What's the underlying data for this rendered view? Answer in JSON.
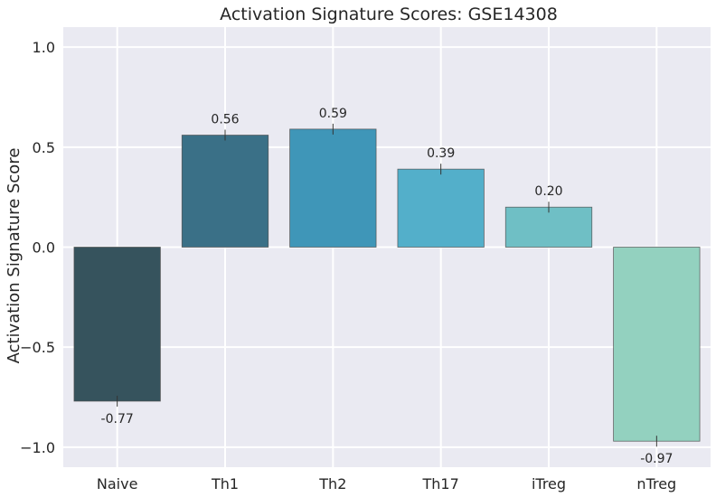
{
  "chart_data": {
    "type": "bar",
    "title": "Activation Signature Scores: GSE14308",
    "xlabel": "",
    "ylabel": "Activation Signature Score",
    "categories": [
      "Naive",
      "Th1",
      "Th2",
      "Th17",
      "iTreg",
      "nTreg"
    ],
    "values": [
      -0.77,
      0.56,
      0.59,
      0.39,
      0.2,
      -0.97
    ],
    "value_labels": [
      "-0.77",
      "0.56",
      "0.59",
      "0.39",
      "0.20",
      "-0.97"
    ],
    "colors": [
      "#36535d",
      "#3a7087",
      "#3f96b8",
      "#53afca",
      "#6fbfc5",
      "#93d1bf"
    ],
    "ylim": [
      -1.1,
      1.1
    ],
    "yticks": [
      1.0,
      0.5,
      0.0,
      -0.5,
      -1.0
    ],
    "ytick_labels": [
      "1.0",
      "0.5",
      "0.0",
      "−0.5",
      "−1.0"
    ],
    "grid": true,
    "plot_background": "#eaeaf2",
    "grid_color": "#ffffff"
  }
}
